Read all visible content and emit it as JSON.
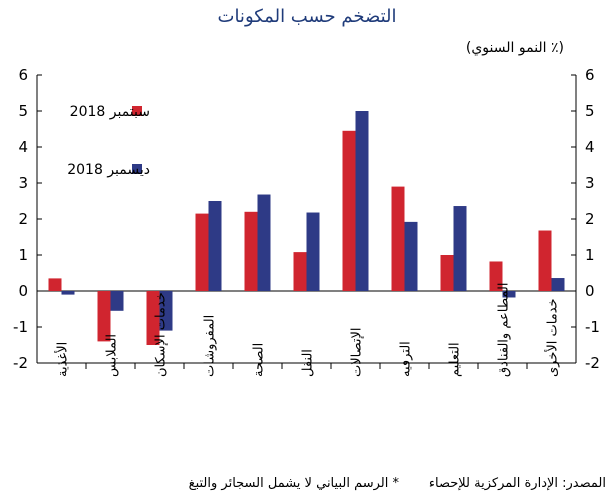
{
  "chart_data": {
    "type": "bar",
    "title": "التضخم حسب المكونات",
    "unit_label": "(٪ النمو السنوي)",
    "categories": [
      "الأغذية",
      "الملابس",
      "خدمات الإسكان",
      "المفروشات",
      "الصحة",
      "النقل",
      "الإتصالات",
      "الترفيه",
      "التعليم",
      "المطاعم والفنادق",
      "خدمات الأخرى"
    ],
    "series": [
      {
        "name": "سبتمبر 2018",
        "color": "#d0252f",
        "values": [
          0.35,
          -1.4,
          -1.5,
          2.15,
          2.2,
          1.08,
          4.45,
          2.9,
          1.0,
          0.82,
          1.68
        ]
      },
      {
        "name": "ديسمبر 2018",
        "color": "#2e3a86",
        "values": [
          -0.1,
          -0.55,
          -1.1,
          2.5,
          2.68,
          2.18,
          5.0,
          1.92,
          2.36,
          -0.18,
          0.36
        ]
      }
    ],
    "ylim": [
      -2,
      6
    ],
    "yticks": [
      -2,
      -1,
      0,
      1,
      2,
      3,
      4,
      5,
      6
    ],
    "legend_position": "top-left",
    "grid": false
  },
  "source": "المصدر: الإدارة المركزية للإحصاء",
  "footnote": "* الرسم البياني لا يشمل السجائر والتبغ"
}
